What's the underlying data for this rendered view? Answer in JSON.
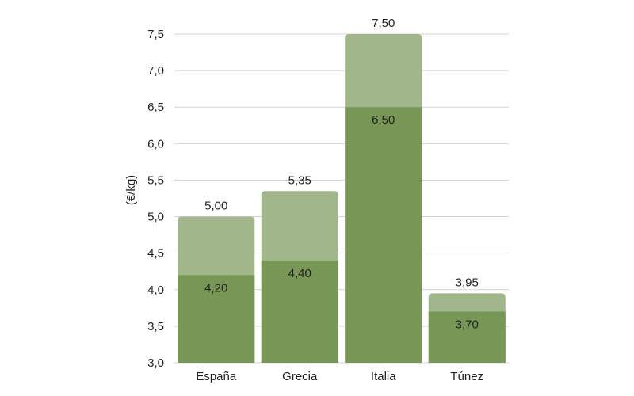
{
  "chart_data": {
    "type": "bar",
    "stacked_overlay": true,
    "ylabel": "(€/kg)",
    "xlabel": "",
    "title": "",
    "ylim": [
      3.0,
      7.5
    ],
    "yticks": [
      3.0,
      3.5,
      4.0,
      4.5,
      5.0,
      5.5,
      6.0,
      6.5,
      7.0,
      7.5
    ],
    "ytick_labels": [
      "3,0",
      "3,5",
      "4,0",
      "4,5",
      "5,0",
      "5,5",
      "6,0",
      "6,5",
      "7,0",
      "7,5"
    ],
    "grid": true,
    "legend": "none",
    "categories": [
      "España",
      "Grecia",
      "Italia",
      "Túnez"
    ],
    "series": [
      {
        "values": [
          4.2,
          4.4,
          6.5,
          3.7
        ],
        "labels": [
          "4,20",
          "4,40",
          "6,50",
          "3,70"
        ],
        "color": "#789656"
      },
      {
        "values": [
          5.0,
          5.35,
          7.5,
          3.95
        ],
        "labels": [
          "5,00",
          "5,35",
          "7,50",
          "3,95"
        ],
        "color": "#a2b68c"
      }
    ]
  }
}
